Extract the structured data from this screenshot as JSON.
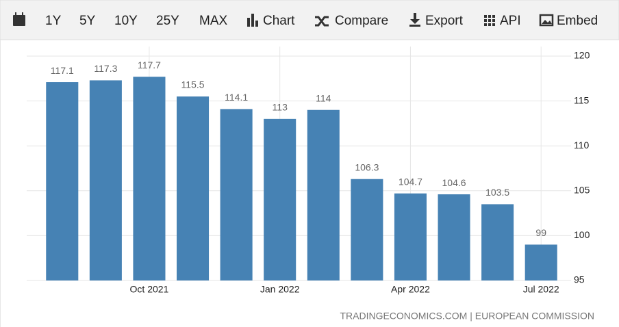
{
  "toolbar": {
    "items": [
      "1Y",
      "5Y",
      "10Y",
      "25Y",
      "MAX",
      "Chart",
      "Compare",
      "Export",
      "API",
      "Embed"
    ]
  },
  "chart_data": {
    "type": "bar",
    "categories": [
      null,
      null,
      "Oct 2021",
      null,
      null,
      "Jan 2022",
      null,
      null,
      "Apr 2022",
      null,
      null,
      "Jul 2022"
    ],
    "values": [
      117.1,
      117.3,
      117.7,
      115.5,
      114.1,
      113,
      114,
      106.3,
      104.7,
      104.6,
      103.5,
      99
    ],
    "color": "#4682b4",
    "ylim": [
      95,
      120
    ],
    "yticks": [
      95,
      100,
      105,
      110,
      115,
      120
    ],
    "grid": true,
    "source": "TRADINGECONOMICS.COM | EUROPEAN COMMISSION"
  }
}
